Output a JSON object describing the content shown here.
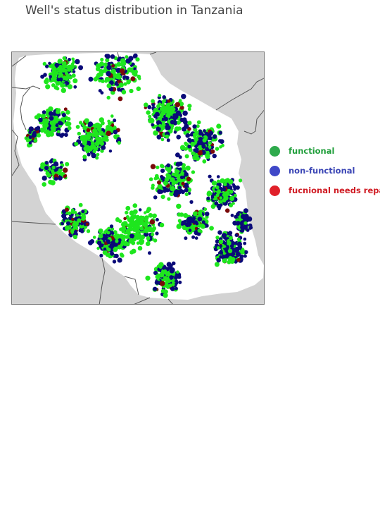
{
  "title": "Well's status distribution in Tanzania",
  "map": {
    "background": "#d3d3d3",
    "land_color": "#ffffff",
    "border_color": "#555555"
  },
  "legend": {
    "items": [
      {
        "label": "functional",
        "color": "#2eaa4c",
        "text_color": "#1f9e3a"
      },
      {
        "label": "non-functional",
        "color": "#3f48c8",
        "text_color": "#3a45b5"
      },
      {
        "label": "fucnional needs repair",
        "color": "#e0202a",
        "text_color": "#d01c24"
      }
    ]
  },
  "point_colors": {
    "functional": "#1ee61e",
    "non_functional": "#0a0a78",
    "needs_repair": "#7a0a0a"
  }
}
